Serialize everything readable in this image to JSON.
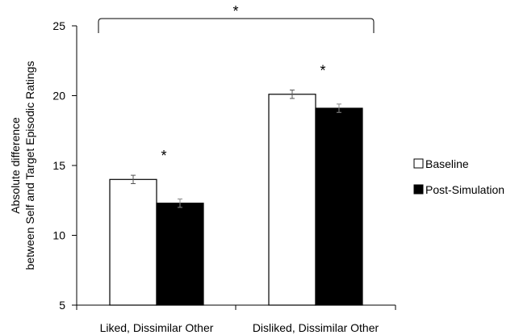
{
  "chart_data": {
    "type": "bar",
    "categories": [
      "Liked, Dissimilar Other",
      "Disliked, Dissimilar Other"
    ],
    "series": [
      {
        "name": "Baseline",
        "values": [
          14.0,
          20.1
        ],
        "errors": [
          0.3,
          0.3
        ],
        "color": "#ffffff"
      },
      {
        "name": "Post-Simulation",
        "values": [
          12.3,
          19.1
        ],
        "errors": [
          0.3,
          0.3
        ],
        "color": "#000000"
      }
    ],
    "ylabel_line1": "Absolute difference",
    "ylabel_line2": "between Self and Target Episodic Ratings",
    "ylim": [
      5,
      25
    ],
    "yticks": [
      "5",
      "10",
      "15",
      "20",
      "25"
    ],
    "grid": false,
    "legend_position": "right",
    "significance_marks": {
      "between_groups": "*",
      "within_groups": [
        "*",
        "*"
      ]
    }
  }
}
